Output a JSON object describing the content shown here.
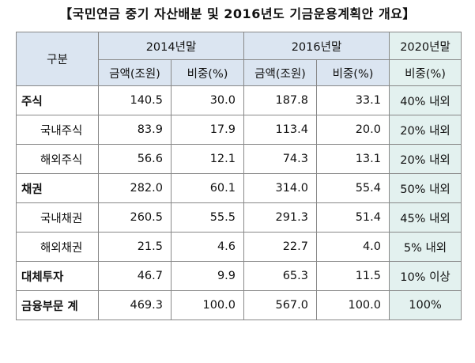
{
  "title": "【국민연금 중기 자산배분 및 2016년도 기금운용계획안 개요】",
  "header": {
    "category": "구분",
    "year2014": "2014년말",
    "year2016": "2016년말",
    "year2020": "2020년말",
    "amount": "금액(조원)",
    "share": "비중(%)"
  },
  "rows": [
    {
      "label": "주식",
      "a14": "140.5",
      "s14": "30.0",
      "a16": "187.8",
      "s16": "33.1",
      "s20": "40% 내외"
    },
    {
      "label": "국내주식",
      "a14": "83.9",
      "s14": "17.9",
      "a16": "113.4",
      "s16": "20.0",
      "s20": "20% 내외"
    },
    {
      "label": "해외주식",
      "a14": "56.6",
      "s14": "12.1",
      "a16": "74.3",
      "s16": "13.1",
      "s20": "20% 내외"
    },
    {
      "label": "채권",
      "a14": "282.0",
      "s14": "60.1",
      "a16": "314.0",
      "s16": "55.4",
      "s20": "50% 내외"
    },
    {
      "label": "국내채권",
      "a14": "260.5",
      "s14": "55.5",
      "a16": "291.3",
      "s16": "51.4",
      "s20": "45% 내외"
    },
    {
      "label": "해외채권",
      "a14": "21.5",
      "s14": "4.6",
      "a16": "22.7",
      "s16": "4.0",
      "s20": "5% 내외"
    },
    {
      "label": "대체투자",
      "a14": "46.7",
      "s14": "9.9",
      "a16": "65.3",
      "s16": "11.5",
      "s20": "10% 이상"
    },
    {
      "label": "금융부문 계",
      "a14": "469.3",
      "s14": "100.0",
      "a16": "567.0",
      "s16": "100.0",
      "s20": "100%"
    }
  ]
}
